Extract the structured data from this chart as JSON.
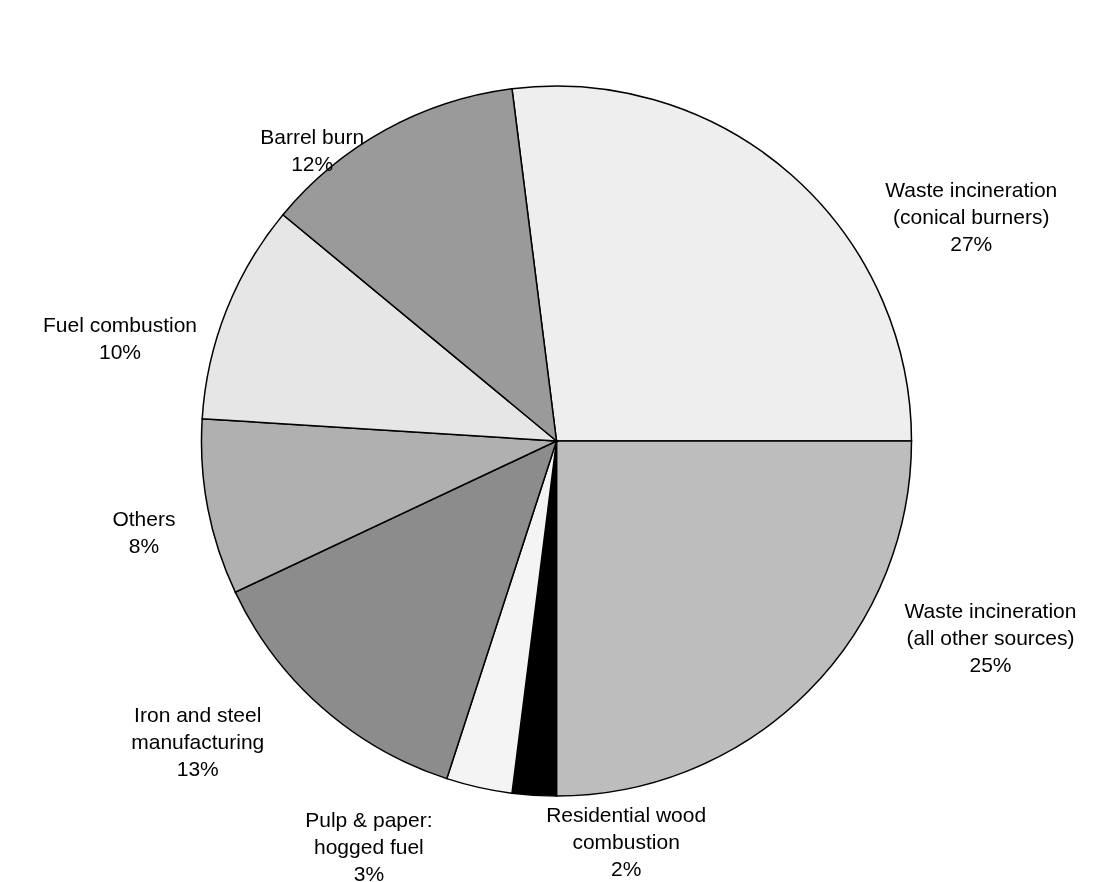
{
  "chart_data": {
    "type": "pie",
    "categories": [
      "Waste incineration\n(conical burners)",
      "Waste incineration\n(all other sources)",
      "Residential wood\ncombustion",
      "Pulp & paper:\nhogged fuel",
      "Iron and steel\nmanufacturing",
      "Others",
      "Fuel combustion",
      "Barrel burn"
    ],
    "values": [
      27,
      25,
      2,
      3,
      13,
      8,
      10,
      12
    ],
    "value_labels": [
      "27%",
      "25%",
      "2%",
      "3%",
      "13%",
      "8%",
      "10%",
      "12%"
    ],
    "colors": [
      "#eeeeee",
      "#bdbdbd",
      "#000000",
      "#f4f4f4",
      "#8c8c8c",
      "#b0b0b0",
      "#e6e6e6",
      "#9a9a9a"
    ]
  }
}
